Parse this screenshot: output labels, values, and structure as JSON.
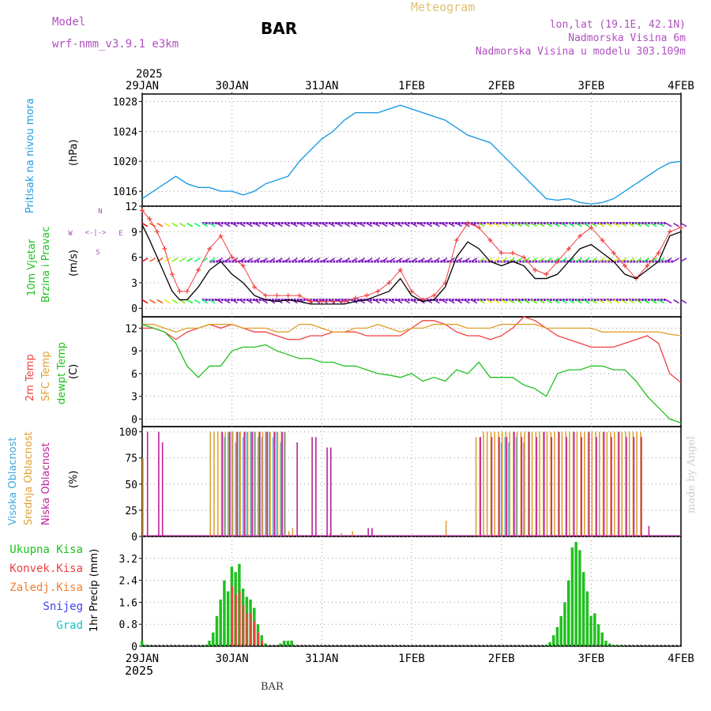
{
  "header": {
    "model_label": "Model",
    "model_name": "wrf-nmm_v3.9.1  e3km",
    "station": "BAR",
    "meteogram_label": "Meteogram",
    "lonlat": "lon,lat (19.1E, 42.1N)",
    "elevation": "Nadmorska Visina 6m",
    "model_elevation": "Nadmorska Visina u modelu 303.109m",
    "footer_station": "BAR",
    "watermark": "made by Angel"
  },
  "colors": {
    "pressure": "#1e9be0",
    "temp2m": "#f04040",
    "sfc": "#e0a030",
    "dewpt": "#20c020",
    "high_cloud": "#40a8e0",
    "mid_cloud": "#e0a030",
    "low_cloud": "#c020a0",
    "precip_total": "#20c020",
    "precip_conv": "#f04040",
    "precip_frozen": "#f08030",
    "snow": "#4040f0",
    "hail": "#20c0c0",
    "wind_purple": "#8020c0",
    "wind_speed": "#000000",
    "gust": "#f04040"
  },
  "chart_data": [
    {
      "type": "line",
      "panel": "pressure",
      "time_axis": {
        "start_year": "2025",
        "labels": [
          "29JAN",
          "30JAN",
          "31JAN",
          "1FEB",
          "2FEB",
          "3FEB",
          "4FEB"
        ],
        "hours_span": 144
      },
      "ylabels": [
        "Pritisak na nivou mora",
        "(hPa)"
      ],
      "ylim": [
        1014,
        1029
      ],
      "yticks": [
        1016,
        1020,
        1024,
        1028
      ],
      "x_hours": [
        0,
        3,
        6,
        9,
        12,
        15,
        18,
        21,
        24,
        27,
        30,
        33,
        36,
        39,
        42,
        45,
        48,
        51,
        54,
        57,
        60,
        63,
        66,
        69,
        72,
        75,
        78,
        81,
        84,
        87,
        90,
        93,
        96,
        99,
        102,
        105,
        108,
        111,
        114,
        117,
        120,
        123,
        126,
        129,
        132,
        135,
        138,
        141,
        144
      ],
      "values": [
        1015,
        1016,
        1017,
        1018,
        1017,
        1016.5,
        1016.5,
        1016,
        1016,
        1015.5,
        1016,
        1017,
        1017.5,
        1018,
        1020,
        1021.5,
        1023,
        1024,
        1025.5,
        1026.5,
        1026.5,
        1026.5,
        1027,
        1027.5,
        1027,
        1026.5,
        1026,
        1025.5,
        1024.5,
        1023.5,
        1023,
        1022.5,
        1021,
        1019.5,
        1018,
        1016.5,
        1015,
        1014.8,
        1015,
        1014.5,
        1014.3,
        1014.5,
        1015,
        1016,
        1017,
        1018,
        1019,
        1019.8,
        1020
      ]
    },
    {
      "type": "line",
      "panel": "wind",
      "ylabels": [
        "10m Vjetar",
        "Brzina i Pravac",
        "(m/s)"
      ],
      "direction_legend": {
        "top": "N",
        "left": "W",
        "right": "E",
        "bottom": "S",
        "sym": "<-|->"
      },
      "ylim": [
        -1,
        12
      ],
      "yticks": [
        0,
        3,
        6,
        9,
        12
      ],
      "x_hours": [
        0,
        2,
        4,
        6,
        8,
        10,
        12,
        15,
        18,
        21,
        24,
        27,
        30,
        33,
        36,
        39,
        42,
        45,
        48,
        51,
        54,
        57,
        60,
        63,
        66,
        69,
        72,
        75,
        78,
        81,
        84,
        87,
        90,
        93,
        96,
        99,
        102,
        105,
        108,
        111,
        114,
        117,
        120,
        123,
        126,
        129,
        132,
        135,
        138,
        141,
        144
      ],
      "series": [
        {
          "name": "speed",
          "values": [
            9.8,
            8,
            6,
            4,
            2,
            1,
            1,
            2.5,
            4.5,
            5.5,
            4,
            3,
            1.5,
            1,
            0.8,
            1,
            0.8,
            0.5,
            0.5,
            0.5,
            0.5,
            0.8,
            1,
            1.5,
            2,
            3.5,
            1.5,
            0.8,
            1,
            2.5,
            6,
            7.8,
            7,
            5.5,
            5,
            5.5,
            5,
            3.5,
            3.5,
            4,
            5.5,
            7,
            7.5,
            6.5,
            5.5,
            4,
            3.5,
            4.5,
            5.5,
            8.5,
            9
          ]
        },
        {
          "name": "gust",
          "values": [
            11.5,
            10.5,
            9,
            7,
            4,
            2,
            2,
            4.5,
            7,
            8.5,
            6,
            5,
            2.5,
            1.5,
            1.5,
            1.5,
            1.5,
            0.8,
            0.8,
            0.8,
            0.8,
            1.2,
            1.5,
            2,
            3,
            4.5,
            2,
            1,
            1.5,
            3,
            8,
            10,
            9.5,
            8,
            6.5,
            6.5,
            6,
            4.5,
            4,
            5.5,
            7,
            8.5,
            9.5,
            8,
            6.5,
            5,
            3.5,
            5,
            6.5,
            9,
            9.5
          ]
        }
      ],
      "barb_rows": [
        1,
        5.5,
        10
      ]
    },
    {
      "type": "line",
      "panel": "temperature",
      "ylabels": [
        "2m Temp",
        "SFC Temp",
        "dewpt Temp",
        "(C)"
      ],
      "ylim": [
        -1,
        13.5
      ],
      "yticks": [
        0,
        3,
        6,
        9,
        12
      ],
      "x_hours": [
        0,
        3,
        6,
        9,
        12,
        15,
        18,
        21,
        24,
        27,
        30,
        33,
        36,
        39,
        42,
        45,
        48,
        51,
        54,
        57,
        60,
        63,
        66,
        69,
        72,
        75,
        78,
        81,
        84,
        87,
        90,
        93,
        96,
        99,
        102,
        105,
        108,
        111,
        114,
        117,
        120,
        123,
        126,
        129,
        132,
        135,
        138,
        141,
        144
      ],
      "series": [
        {
          "name": "2m Temp",
          "values": [
            12,
            12,
            11.5,
            10.5,
            11.5,
            12,
            12.5,
            12,
            12.5,
            12,
            11.5,
            11.5,
            11,
            10.5,
            10.5,
            11,
            11,
            11.5,
            11.5,
            11.5,
            11,
            11,
            11,
            11,
            12,
            13,
            13,
            12.5,
            11.5,
            11,
            11,
            10.5,
            11,
            12,
            13.5,
            13,
            12,
            11,
            10.5,
            10,
            9.5,
            9.5,
            9.5,
            10,
            10.5,
            11,
            10,
            6,
            4.8
          ]
        },
        {
          "name": "SFC Temp",
          "values": [
            12.5,
            12.5,
            12,
            11.5,
            12,
            12,
            12.5,
            12.5,
            12.5,
            12,
            12,
            12,
            11.5,
            11.5,
            12.5,
            12.5,
            12,
            11.5,
            11.5,
            12,
            12,
            12.5,
            12,
            11.5,
            12,
            12,
            12.5,
            12.5,
            12.5,
            12,
            12,
            12,
            12.5,
            12.5,
            12.5,
            12.5,
            12,
            12,
            12,
            12,
            12,
            11.5,
            11.5,
            11.5,
            11.5,
            11.5,
            11.5,
            11.2,
            11
          ]
        },
        {
          "name": "dewpt Temp",
          "values": [
            12.5,
            12,
            11.5,
            10,
            7,
            5.5,
            7,
            7,
            9,
            9.5,
            9.5,
            9.8,
            9,
            8.5,
            8,
            8,
            7.5,
            7.5,
            7,
            7,
            6.5,
            6,
            5.8,
            5.5,
            6,
            5,
            5.5,
            5,
            6.5,
            6,
            7.5,
            5.5,
            5.5,
            5.5,
            4.5,
            4,
            3,
            6,
            6.5,
            6.5,
            7,
            7,
            6.5,
            6.5,
            5,
            3,
            1.5,
            0,
            -0.5
          ]
        }
      ]
    },
    {
      "type": "bar",
      "panel": "cloud",
      "ylabels": [
        "Visoka Oblacnost",
        "Srednja Oblacnost",
        "Niska Oblacnost",
        "(%)"
      ],
      "ylim": [
        0,
        105
      ],
      "yticks": [
        0,
        25,
        50,
        75,
        100
      ],
      "series": [
        {
          "name": "Visoka Oblacnost",
          "hours": [
            22,
            23,
            24,
            25,
            26,
            27,
            28,
            29,
            30,
            31,
            32,
            33,
            34,
            35,
            36,
            37,
            38,
            96,
            97,
            98,
            100,
            102
          ],
          "values": [
            95,
            100,
            100,
            90,
            100,
            95,
            100,
            100,
            100,
            95,
            95,
            100,
            100,
            95,
            100,
            90,
            100,
            90,
            95,
            90,
            95,
            90
          ]
        },
        {
          "name": "Srednja Oblacnost",
          "hours": [
            0,
            18,
            19,
            20,
            21,
            22,
            23,
            24,
            25,
            26,
            27,
            28,
            29,
            30,
            31,
            32,
            33,
            34,
            35,
            36,
            37,
            38,
            39,
            40,
            50,
            53,
            56,
            81,
            89,
            90,
            91,
            92,
            93,
            94,
            95,
            96,
            97,
            98,
            99,
            100,
            101,
            102,
            103,
            104,
            105,
            106,
            107,
            108,
            109,
            110,
            111,
            112,
            113,
            114,
            115,
            116,
            117,
            118,
            119,
            120,
            121,
            122,
            123,
            124,
            125,
            126,
            127,
            128,
            129,
            130,
            131,
            132,
            133
          ],
          "values": [
            75,
            100,
            100,
            100,
            100,
            100,
            100,
            100,
            100,
            100,
            100,
            100,
            100,
            100,
            100,
            100,
            100,
            100,
            100,
            100,
            100,
            100,
            5,
            8,
            3,
            3,
            5,
            15,
            95,
            95,
            100,
            100,
            100,
            100,
            100,
            100,
            100,
            100,
            100,
            100,
            100,
            100,
            100,
            100,
            100,
            100,
            100,
            100,
            100,
            100,
            100,
            100,
            100,
            100,
            100,
            100,
            100,
            100,
            100,
            100,
            100,
            100,
            100,
            100,
            100,
            100,
            100,
            100,
            100,
            100,
            100,
            100,
            100
          ]
        },
        {
          "name": "Niska Oblacnost",
          "hours": [
            1,
            4,
            5,
            21,
            23,
            25,
            27,
            29,
            31,
            33,
            35,
            37,
            41,
            45,
            46,
            49,
            50,
            60,
            61,
            90,
            93,
            95,
            97,
            99,
            101,
            103,
            105,
            107,
            109,
            111,
            113,
            115,
            117,
            119,
            121,
            123,
            125,
            127,
            129,
            131,
            133,
            135
          ],
          "values": [
            100,
            100,
            90,
            100,
            100,
            100,
            100,
            100,
            100,
            100,
            100,
            100,
            90,
            95,
            95,
            85,
            85,
            8,
            8,
            95,
            95,
            95,
            95,
            100,
            95,
            100,
            95,
            100,
            95,
            100,
            95,
            100,
            95,
            100,
            95,
            100,
            95,
            100,
            95,
            95,
            95,
            10
          ]
        }
      ]
    },
    {
      "type": "bar",
      "panel": "precip",
      "ylabels": [
        "Ukupna Kisa",
        "Konvek.Kisa",
        "Zaledj.Kisa",
        "Snijeg",
        "Grad",
        "1hr Precip (mm)"
      ],
      "ylim": [
        0,
        4.0
      ],
      "yticks": [
        0,
        0.8,
        1.6,
        2.4,
        3.2
      ],
      "series": [
        {
          "name": "Ukupna Kisa",
          "hours": [
            0,
            1,
            17,
            18,
            19,
            20,
            21,
            22,
            23,
            24,
            25,
            26,
            27,
            28,
            29,
            30,
            31,
            32,
            33,
            37,
            38,
            39,
            40,
            108,
            109,
            110,
            111,
            112,
            113,
            114,
            115,
            116,
            117,
            118,
            119,
            120,
            121,
            122,
            123,
            124,
            125,
            126,
            127,
            128
          ],
          "values": [
            0.2,
            0.05,
            0.05,
            0.2,
            0.5,
            1.1,
            1.7,
            2.4,
            2.0,
            2.9,
            2.7,
            3.0,
            2.1,
            1.8,
            1.7,
            1.4,
            0.8,
            0.4,
            0.1,
            0.1,
            0.2,
            0.2,
            0.2,
            0.05,
            0.15,
            0.4,
            0.7,
            1.1,
            1.6,
            2.4,
            3.6,
            3.8,
            3.5,
            2.7,
            2.0,
            1.1,
            1.2,
            0.8,
            0.5,
            0.2,
            0.1,
            0.05,
            0.05,
            0.05
          ]
        },
        {
          "name": "Konvek.Kisa",
          "hours": [
            24,
            25,
            26,
            27,
            28,
            29,
            30,
            31,
            32
          ],
          "values": [
            2.2,
            1.9,
            2.0,
            1.5,
            1.2,
            1.2,
            0.9,
            0.5,
            0.2
          ]
        }
      ]
    }
  ]
}
